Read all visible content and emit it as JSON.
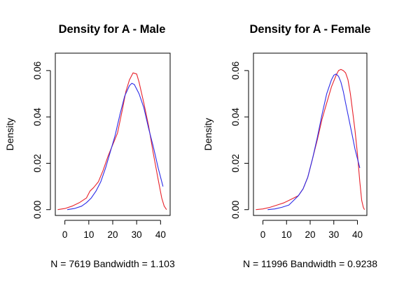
{
  "chart_data": [
    {
      "type": "line",
      "title": "Density for A - Male",
      "xlabel": "N = 7619   Bandwidth = 1.103",
      "ylabel": "Density",
      "xlim": [
        -4,
        44
      ],
      "ylim": [
        -0.0025,
        0.0675
      ],
      "x_ticks": [
        "0",
        "10",
        "20",
        "30",
        "40"
      ],
      "y_ticks": [
        "0.00",
        "0.02",
        "0.04",
        "0.06"
      ],
      "grid": false,
      "series": [
        {
          "color": "#e8222b",
          "points": [
            [
              -3,
              0
            ],
            [
              0,
              0.0005
            ],
            [
              3,
              0.0015
            ],
            [
              6,
              0.003
            ],
            [
              9,
              0.005
            ],
            [
              10.5,
              0.008
            ],
            [
              12,
              0.0095
            ],
            [
              14,
              0.012
            ],
            [
              16,
              0.017
            ],
            [
              18,
              0.023
            ],
            [
              20,
              0.028
            ],
            [
              22,
              0.033
            ],
            [
              24,
              0.043
            ],
            [
              25.5,
              0.051
            ],
            [
              27,
              0.056
            ],
            [
              28.5,
              0.059
            ],
            [
              30,
              0.0585
            ],
            [
              31,
              0.055
            ],
            [
              33,
              0.046
            ],
            [
              35,
              0.036
            ],
            [
              37,
              0.024
            ],
            [
              39,
              0.013
            ],
            [
              40.5,
              0.005
            ],
            [
              41.5,
              0.0015
            ],
            [
              42.5,
              0
            ]
          ]
        },
        {
          "color": "#2b2be8",
          "points": [
            [
              1,
              0
            ],
            [
              4,
              0.0005
            ],
            [
              7,
              0.0015
            ],
            [
              9,
              0.003
            ],
            [
              11,
              0.005
            ],
            [
              13,
              0.008
            ],
            [
              15,
              0.012
            ],
            [
              17,
              0.018
            ],
            [
              19,
              0.025
            ],
            [
              21,
              0.032
            ],
            [
              23,
              0.041
            ],
            [
              25,
              0.049
            ],
            [
              27,
              0.0535
            ],
            [
              28,
              0.0545
            ],
            [
              29,
              0.054
            ],
            [
              31,
              0.05
            ],
            [
              33,
              0.044
            ],
            [
              35,
              0.035
            ],
            [
              37,
              0.027
            ],
            [
              39,
              0.018
            ],
            [
              41,
              0.01
            ]
          ]
        }
      ]
    },
    {
      "type": "line",
      "title": "Density for A - Female",
      "xlabel": "N = 11996   Bandwidth = 0.9238",
      "ylabel": "Density",
      "xlim": [
        -4,
        44
      ],
      "ylim": [
        -0.0025,
        0.0675
      ],
      "x_ticks": [
        "0",
        "10",
        "20",
        "30",
        "40"
      ],
      "y_ticks": [
        "0.00",
        "0.02",
        "0.04",
        "0.06"
      ],
      "grid": false,
      "series": [
        {
          "color": "#e8222b",
          "points": [
            [
              -3,
              0
            ],
            [
              0,
              0.0003
            ],
            [
              3,
              0.001
            ],
            [
              6,
              0.002
            ],
            [
              9,
              0.003
            ],
            [
              11,
              0.004
            ],
            [
              13,
              0.005
            ],
            [
              15,
              0.006
            ],
            [
              17,
              0.009
            ],
            [
              19,
              0.014
            ],
            [
              21,
              0.022
            ],
            [
              23,
              0.03
            ],
            [
              25,
              0.039
            ],
            [
              27,
              0.046
            ],
            [
              29,
              0.053
            ],
            [
              31,
              0.058
            ],
            [
              32,
              0.06
            ],
            [
              33,
              0.0605
            ],
            [
              34,
              0.06
            ],
            [
              35,
              0.059
            ],
            [
              36,
              0.056
            ],
            [
              37,
              0.05
            ],
            [
              38,
              0.042
            ],
            [
              39,
              0.034
            ],
            [
              40,
              0.024
            ],
            [
              41,
              0.012
            ],
            [
              41.8,
              0.004
            ],
            [
              42.5,
              0.001
            ],
            [
              43,
              0
            ]
          ]
        },
        {
          "color": "#2b2be8",
          "points": [
            [
              2,
              0
            ],
            [
              5,
              0.0003
            ],
            [
              8,
              0.001
            ],
            [
              11,
              0.002
            ],
            [
              13,
              0.004
            ],
            [
              15,
              0.006
            ],
            [
              17,
              0.009
            ],
            [
              19,
              0.014
            ],
            [
              21,
              0.022
            ],
            [
              23,
              0.031
            ],
            [
              25,
              0.041
            ],
            [
              27,
              0.05
            ],
            [
              29,
              0.056
            ],
            [
              30,
              0.058
            ],
            [
              31,
              0.0585
            ],
            [
              32,
              0.0575
            ],
            [
              33,
              0.055
            ],
            [
              34,
              0.051
            ],
            [
              35,
              0.046
            ],
            [
              36,
              0.041
            ],
            [
              37,
              0.036
            ],
            [
              38,
              0.031
            ],
            [
              39,
              0.026
            ],
            [
              40,
              0.022
            ],
            [
              41,
              0.018
            ]
          ]
        }
      ]
    }
  ]
}
